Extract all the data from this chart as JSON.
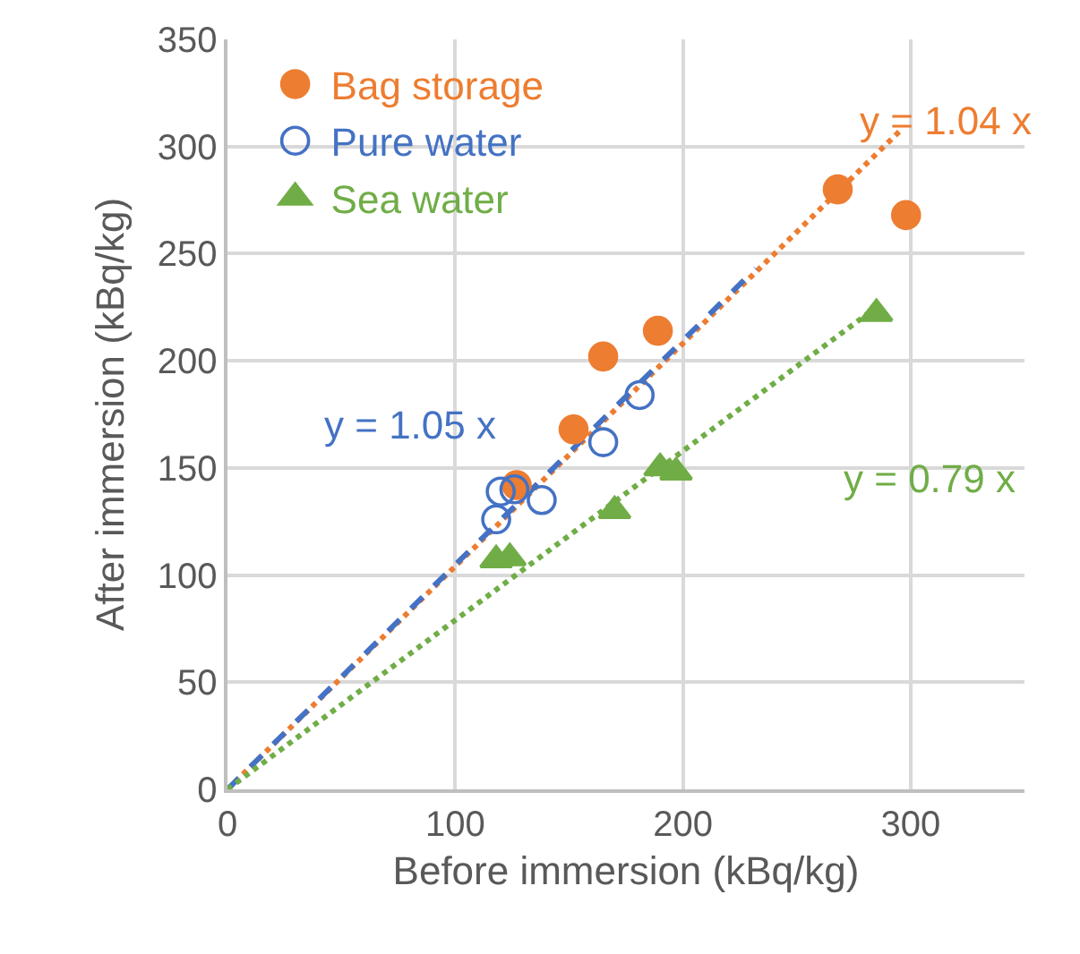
{
  "chart_data": {
    "type": "scatter",
    "xlabel": "Before immersion (kBq/kg)",
    "ylabel": "After immersion (kBq/kg)",
    "xlim": [
      0,
      350
    ],
    "ylim": [
      0,
      350
    ],
    "xticks": [
      0,
      100,
      200,
      300
    ],
    "yticks": [
      0,
      50,
      100,
      150,
      200,
      250,
      300,
      350
    ],
    "grid": true,
    "legend": "top left",
    "series": [
      {
        "name": "Bag storage",
        "color": "#ed7d31",
        "marker": "circle",
        "x": [
          127,
          152,
          165,
          189,
          268,
          298
        ],
        "values": [
          142,
          168,
          202,
          214,
          280,
          268
        ]
      },
      {
        "name": "Pure water",
        "color": "#4472c4",
        "marker": "circle-open",
        "x": [
          118,
          120,
          126,
          138,
          165,
          181
        ],
        "values": [
          126,
          139,
          140,
          135,
          162,
          184
        ]
      },
      {
        "name": "Sea water",
        "color": "#70ad47",
        "marker": "triangle",
        "x": [
          118,
          124,
          170,
          190,
          197,
          285
        ],
        "values": [
          107,
          108,
          130,
          150,
          148,
          222
        ]
      },
      {
        "type": "line",
        "color": "#ed7d31",
        "line_style": "dotted",
        "x": [
          0,
          296
        ],
        "values": [
          0,
          308
        ]
      },
      {
        "type": "line",
        "color": "#4472c4",
        "line_style": "dashed",
        "x": [
          0,
          232
        ],
        "values": [
          0,
          243
        ]
      },
      {
        "type": "line",
        "color": "#70ad47",
        "line_style": "dotted",
        "x": [
          0,
          285
        ],
        "values": [
          0,
          225
        ]
      }
    ],
    "annotations": [
      "y = 1.04 x",
      "y = 1.05 x",
      "y = 0.79 x"
    ]
  }
}
